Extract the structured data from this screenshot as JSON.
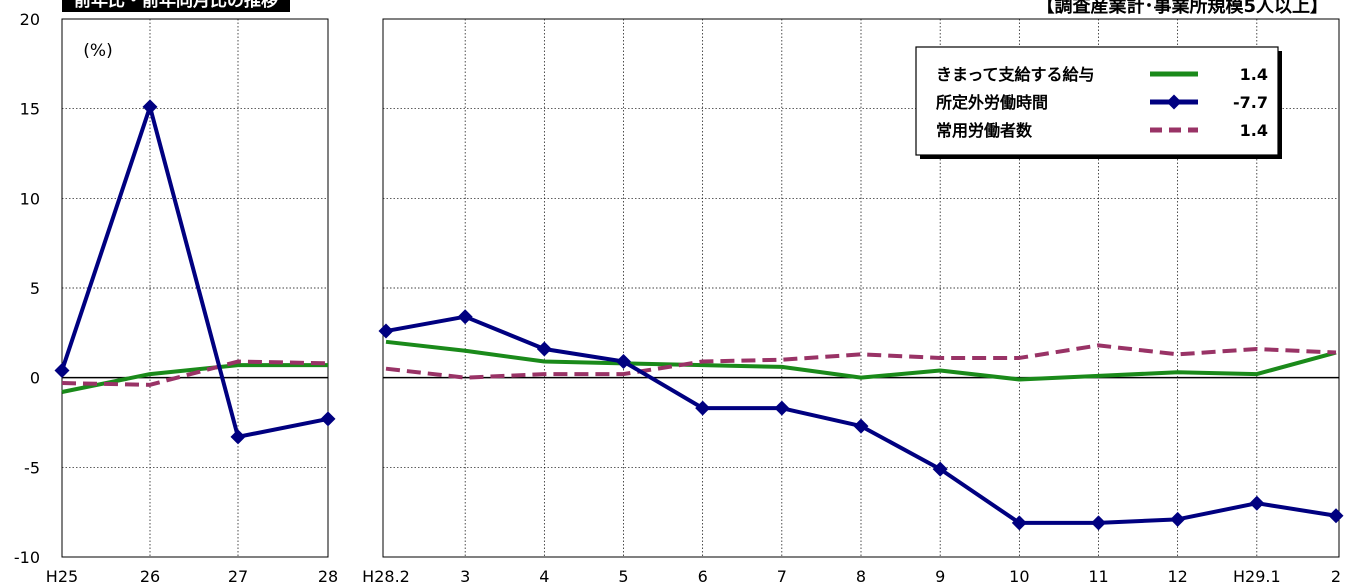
{
  "header": {
    "banner": "前年比・前年同月比の推移",
    "scope": "【調査産業計･事業所規模5人以上】"
  },
  "chart_data": {
    "type": "line",
    "unit_label": "(%)",
    "ylim": [
      -10,
      20
    ],
    "y_ticks": [
      "20",
      "15",
      "10",
      "5",
      "0",
      "-5",
      "-10"
    ],
    "grid": true,
    "legend_position": "top-right",
    "panels": [
      {
        "id": "annual",
        "categories": [
          "H25",
          "26",
          "27",
          "28"
        ],
        "series": [
          {
            "name": "きまって支給する給与",
            "values": [
              -0.8,
              0.2,
              0.7,
              0.7
            ]
          },
          {
            "name": "所定外労働時間",
            "values": [
              0.4,
              15.1,
              -3.3,
              -2.3
            ]
          },
          {
            "name": "常用労働者数",
            "values": [
              -0.3,
              -0.4,
              0.9,
              0.8
            ]
          }
        ]
      },
      {
        "id": "monthly",
        "categories": [
          "H28.2",
          "3",
          "4",
          "5",
          "6",
          "7",
          "8",
          "9",
          "10",
          "11",
          "12",
          "H29.1",
          "2"
        ],
        "series": [
          {
            "name": "きまって支給する給与",
            "values": [
              2.0,
              1.5,
              0.9,
              0.8,
              0.7,
              0.6,
              0.0,
              0.4,
              -0.1,
              0.1,
              0.3,
              0.2,
              1.4
            ]
          },
          {
            "name": "所定外労働時間",
            "values": [
              2.6,
              3.4,
              1.6,
              0.9,
              -1.7,
              -1.7,
              -2.7,
              -5.1,
              -8.1,
              -8.1,
              -7.9,
              -7.0,
              -7.7
            ]
          },
          {
            "name": "常用労働者数",
            "values": [
              0.5,
              0.0,
              0.2,
              0.2,
              0.9,
              1.0,
              1.3,
              1.1,
              1.1,
              1.8,
              1.3,
              1.6,
              1.4
            ]
          }
        ]
      }
    ],
    "legend": [
      {
        "name": "きまって支給する給与",
        "value": "1.4",
        "color": "#1a8a1a",
        "style": "solid"
      },
      {
        "name": "所定外労働時間",
        "value": "-7.7",
        "color": "#000080",
        "style": "diamond"
      },
      {
        "name": "常用労働者数",
        "value": "1.4",
        "color": "#993366",
        "style": "dashed"
      }
    ]
  }
}
